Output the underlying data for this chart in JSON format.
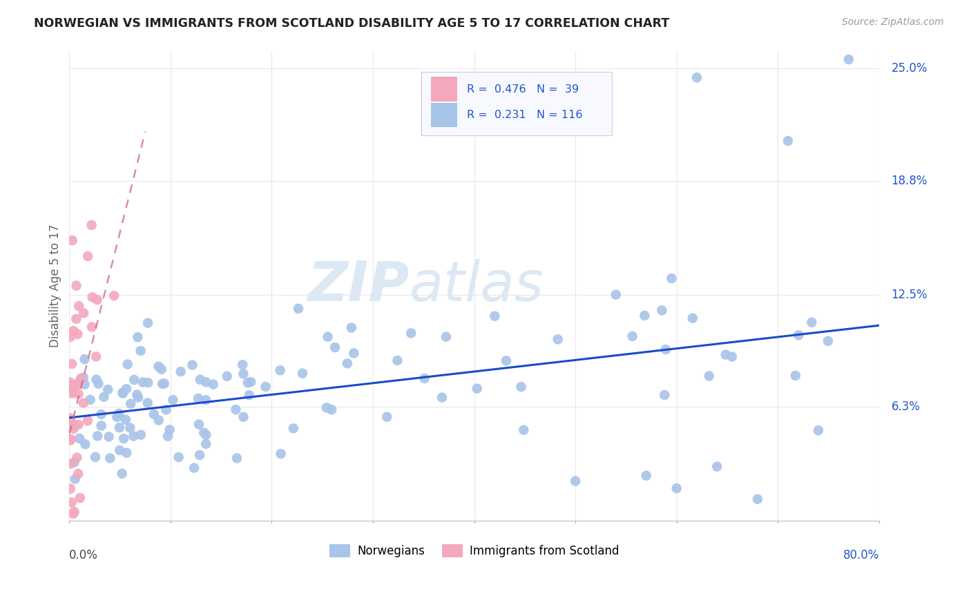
{
  "title": "NORWEGIAN VS IMMIGRANTS FROM SCOTLAND DISABILITY AGE 5 TO 17 CORRELATION CHART",
  "source": "Source: ZipAtlas.com",
  "ylabel": "Disability Age 5 to 17",
  "xlim": [
    0.0,
    0.8
  ],
  "ylim": [
    0.0,
    0.26
  ],
  "ytick_labels_right": [
    "25.0%",
    "18.8%",
    "12.5%",
    "6.3%"
  ],
  "ytick_values_right": [
    0.25,
    0.188,
    0.125,
    0.063
  ],
  "blue_R": 0.231,
  "blue_N": 116,
  "pink_R": 0.476,
  "pink_N": 39,
  "blue_color": "#a8c4e8",
  "pink_color": "#f4a8bc",
  "blue_line_color": "#1a4acc",
  "pink_line_color": "#cc6688",
  "watermark_color": "#dde8f5",
  "legend_text_color": "#2255cc",
  "grid_color": "#e8e8e8",
  "nor_line_x0": 0.0,
  "nor_line_y0": 0.057,
  "nor_line_x1": 0.8,
  "nor_line_y1": 0.108,
  "scot_line_x0": 0.0,
  "scot_line_y0": 0.048,
  "scot_line_x1": 0.075,
  "scot_line_y1": 0.215
}
